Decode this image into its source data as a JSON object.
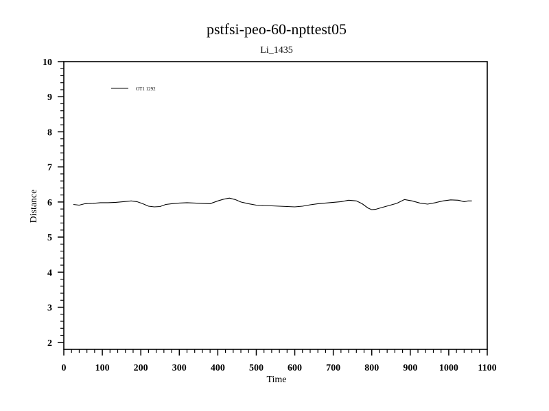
{
  "chart_data": {
    "type": "line",
    "title": "pstfsi-peo-60-npttest05",
    "subtitle": "Li_1435",
    "xlabel": "Time",
    "ylabel": "Distance",
    "xlim": [
      0,
      1100
    ],
    "ylim": [
      1.8,
      10
    ],
    "xticks": [
      0,
      100,
      200,
      300,
      400,
      500,
      600,
      700,
      800,
      900,
      1000,
      1100
    ],
    "yticks": [
      2,
      3,
      4,
      5,
      6,
      7,
      8,
      9,
      10
    ],
    "xminor": 4,
    "yminor": 4,
    "grid": false,
    "legend_position": "top-left",
    "series": [
      {
        "name": "OT1 1292",
        "color": "#000000",
        "x": [
          25,
          40,
          55,
          75,
          95,
          115,
          135,
          155,
          175,
          190,
          205,
          220,
          235,
          250,
          265,
          280,
          300,
          320,
          340,
          360,
          380,
          400,
          415,
          430,
          445,
          460,
          480,
          500,
          520,
          540,
          560,
          580,
          600,
          620,
          640,
          660,
          680,
          700,
          720,
          740,
          760,
          775,
          790,
          800,
          810,
          825,
          845,
          865,
          885,
          905,
          925,
          945,
          965,
          985,
          1005,
          1025,
          1040,
          1050,
          1060
        ],
        "y": [
          5.93,
          5.91,
          5.95,
          5.96,
          5.98,
          5.98,
          5.99,
          6.01,
          6.03,
          6.01,
          5.95,
          5.88,
          5.86,
          5.87,
          5.93,
          5.95,
          5.97,
          5.98,
          5.97,
          5.96,
          5.95,
          6.03,
          6.08,
          6.11,
          6.07,
          6.0,
          5.95,
          5.91,
          5.9,
          5.89,
          5.88,
          5.87,
          5.86,
          5.88,
          5.92,
          5.95,
          5.97,
          5.99,
          6.01,
          6.05,
          6.03,
          5.95,
          5.83,
          5.78,
          5.79,
          5.84,
          5.9,
          5.96,
          6.07,
          6.03,
          5.97,
          5.94,
          5.98,
          6.03,
          6.06,
          6.05,
          6.01,
          6.03,
          6.03
        ]
      }
    ]
  }
}
